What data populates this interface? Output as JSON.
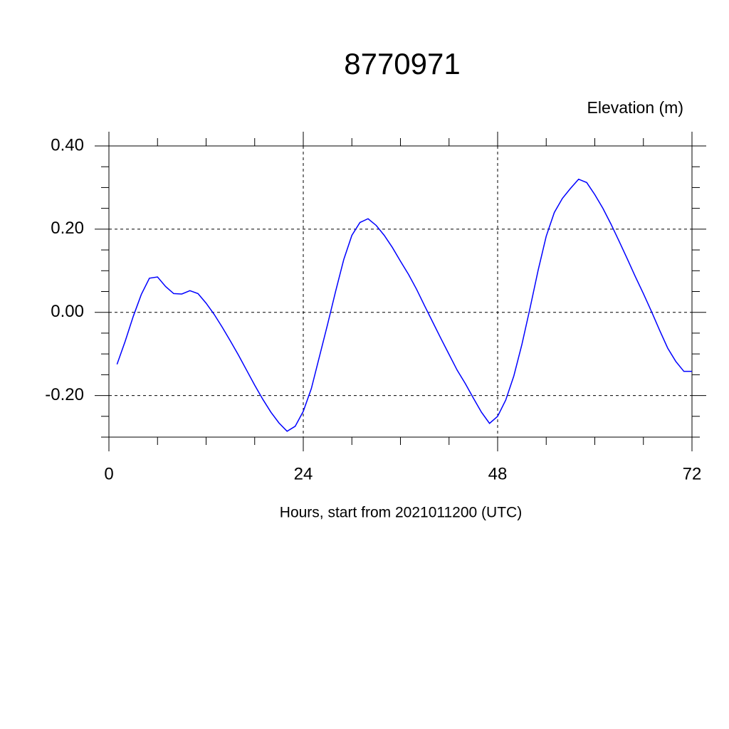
{
  "chart_data": {
    "type": "line",
    "title": "8770971",
    "ylabel": "Elevation (m)",
    "xlabel": "Hours, start from 2021011200 (UTC)",
    "x": [
      1,
      2,
      3,
      4,
      5,
      6,
      7,
      8,
      9,
      10,
      11,
      12,
      13,
      14,
      15,
      16,
      17,
      18,
      19,
      20,
      21,
      22,
      23,
      24,
      25,
      26,
      27,
      28,
      29,
      30,
      31,
      32,
      33,
      34,
      35,
      36,
      37,
      38,
      39,
      40,
      41,
      42,
      43,
      44,
      45,
      46,
      47,
      48,
      49,
      50,
      51,
      52,
      53,
      54,
      55,
      56,
      57,
      58,
      59,
      60,
      61,
      62,
      63,
      64,
      65,
      66,
      67,
      68,
      69,
      70,
      71,
      72
    ],
    "series": [
      {
        "name": "Elevation",
        "color": "#0000ff",
        "values": [
          -0.125,
          -0.07,
          -0.01,
          0.043,
          0.082,
          0.085,
          0.062,
          0.045,
          0.044,
          0.052,
          0.045,
          0.022,
          -0.005,
          -0.036,
          -0.069,
          -0.103,
          -0.139,
          -0.175,
          -0.209,
          -0.24,
          -0.266,
          -0.286,
          -0.274,
          -0.238,
          -0.183,
          -0.106,
          -0.029,
          0.051,
          0.127,
          0.185,
          0.216,
          0.225,
          0.209,
          0.185,
          0.156,
          0.123,
          0.091,
          0.055,
          0.015,
          -0.024,
          -0.063,
          -0.101,
          -0.139,
          -0.171,
          -0.206,
          -0.24,
          -0.267,
          -0.25,
          -0.211,
          -0.153,
          -0.077,
          0.01,
          0.101,
          0.183,
          0.24,
          0.274,
          0.298,
          0.32,
          0.312,
          0.283,
          0.25,
          0.212,
          0.171,
          0.129,
          0.086,
          0.045,
          0.002,
          -0.043,
          -0.086,
          -0.118,
          -0.142,
          -0.142
        ]
      }
    ],
    "xlim": [
      0,
      72
    ],
    "xticks": [
      0,
      24,
      48,
      72
    ],
    "xminorticks": [
      6,
      12,
      18,
      30,
      36,
      42,
      54,
      60,
      66
    ],
    "ylim": [
      -0.3,
      0.4
    ],
    "yticks": [
      {
        "value": 0.4,
        "label": "0.40"
      },
      {
        "value": 0.2,
        "label": "0.20"
      },
      {
        "value": 0,
        "label": "0.00"
      },
      {
        "value": -0.2,
        "label": "-0.20"
      }
    ],
    "yminorticks": [
      -0.3,
      -0.25,
      -0.15,
      -0.1,
      -0.05,
      0.05,
      0.1,
      0.15,
      0.25,
      0.3,
      0.35
    ],
    "grid": true
  }
}
